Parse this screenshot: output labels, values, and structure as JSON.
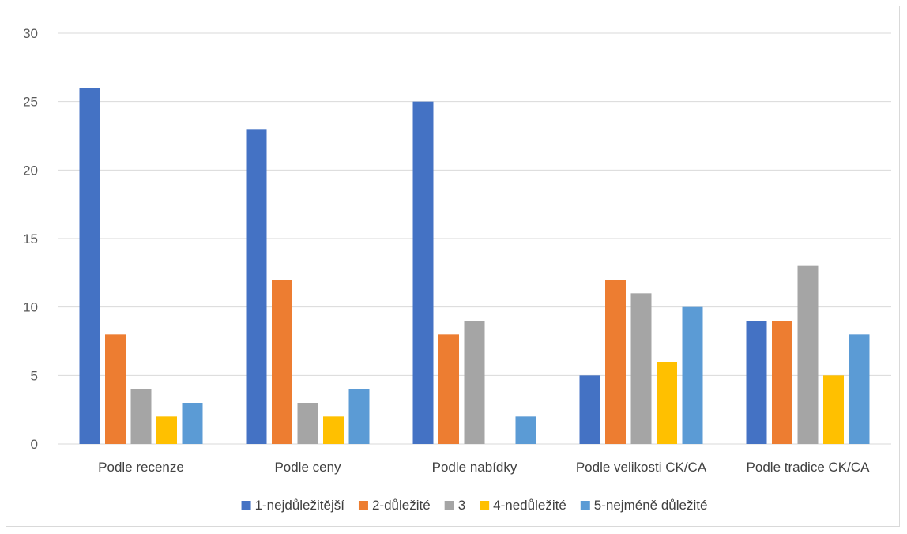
{
  "chart_data": {
    "type": "bar",
    "categories": [
      "Podle recenze",
      "Podle ceny",
      "Podle nabídky",
      "Podle velikosti CK/CA",
      "Podle tradice CK/CA"
    ],
    "series": [
      {
        "name": "1-nejdůležitější",
        "color": "#4472C4",
        "values": [
          26,
          23,
          25,
          5,
          9
        ]
      },
      {
        "name": "2-důležité",
        "color": "#ED7D31",
        "values": [
          8,
          12,
          8,
          12,
          9
        ]
      },
      {
        "name": "3",
        "color": "#A5A5A5",
        "values": [
          4,
          3,
          9,
          11,
          13
        ]
      },
      {
        "name": "4-nedůležité",
        "color": "#FFC000",
        "values": [
          2,
          2,
          0,
          6,
          5
        ]
      },
      {
        "name": "5-nejméně důležité",
        "color": "#5B9BD5",
        "values": [
          3,
          4,
          2,
          10,
          8
        ]
      }
    ],
    "y_ticks": [
      "0",
      "5",
      "10",
      "15",
      "20",
      "25",
      "30"
    ],
    "ylim": [
      0,
      30
    ],
    "grid": true,
    "legend_position": "bottom",
    "gridline_color": "#d9d9d9"
  }
}
